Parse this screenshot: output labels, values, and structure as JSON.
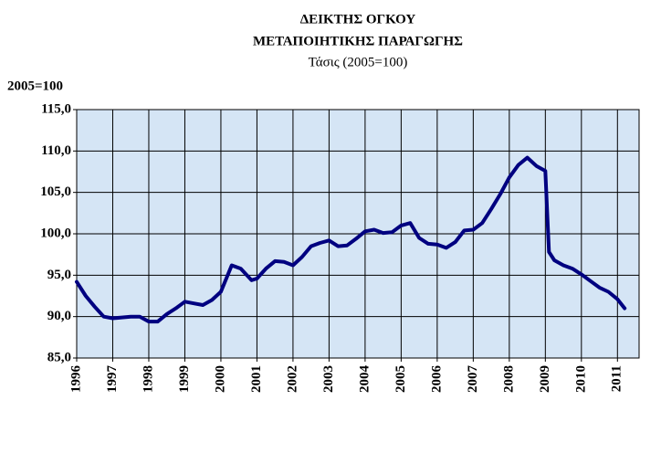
{
  "chart_data": {
    "type": "line",
    "title": [
      "ΔΕΙΚΤΗΣ ΟΓΚΟΥ",
      "ΜΕΤΑΠΟΙΗΤΙΚΗΣ ΠΑΡΑΓΩΓΗΣ"
    ],
    "subtitle": "Τάσις (2005=100)",
    "y_label": "2005=100",
    "series": [
      {
        "name": "Τάσις",
        "color": "#000080",
        "x": [
          1996.0,
          1996.25,
          1996.5,
          1996.75,
          1997.0,
          1997.25,
          1997.5,
          1997.75,
          1998.0,
          1998.25,
          1998.5,
          1998.75,
          1999.0,
          1999.25,
          1999.5,
          1999.75,
          2000.0,
          2000.3,
          2000.55,
          2000.85,
          2001.0,
          2001.25,
          2001.5,
          2001.75,
          2002.0,
          2002.25,
          2002.5,
          2002.75,
          2003.0,
          2003.25,
          2003.5,
          2003.75,
          2004.0,
          2004.25,
          2004.5,
          2004.75,
          2005.0,
          2005.25,
          2005.5,
          2005.75,
          2006.0,
          2006.25,
          2006.5,
          2006.75,
          2007.0,
          2007.25,
          2007.5,
          2007.75,
          2008.0,
          2008.25,
          2008.5,
          2008.75,
          2009.0,
          2009.1,
          2009.25,
          2009.5,
          2009.75,
          2010.0,
          2010.25,
          2010.5,
          2010.75,
          2011.0,
          2011.2
        ],
        "values": [
          94.2,
          92.5,
          91.2,
          90.0,
          89.8,
          89.9,
          90.0,
          90.0,
          89.4,
          89.4,
          90.3,
          91.0,
          91.8,
          91.6,
          91.4,
          92.0,
          93.0,
          96.2,
          95.8,
          94.4,
          94.6,
          95.8,
          96.7,
          96.6,
          96.2,
          97.2,
          98.5,
          98.9,
          99.2,
          98.5,
          98.6,
          99.4,
          100.3,
          100.5,
          100.1,
          100.2,
          101.0,
          101.3,
          99.5,
          98.8,
          98.7,
          98.3,
          99.0,
          100.4,
          100.5,
          101.3,
          103.0,
          104.8,
          106.8,
          108.3,
          109.2,
          108.2,
          107.6,
          97.8,
          96.8,
          96.2,
          95.8,
          95.1,
          94.3,
          93.5,
          93.0,
          92.1,
          91.0
        ]
      }
    ],
    "xlim": [
      1996,
      2011.6
    ],
    "xticks": [
      1996,
      1997,
      1998,
      1999,
      2000,
      2001,
      2002,
      2003,
      2004,
      2005,
      2006,
      2007,
      2008,
      2009,
      2010,
      2011
    ],
    "ylim": [
      85,
      115
    ],
    "yticks": [
      {
        "value": 85,
        "label": "85,0"
      },
      {
        "value": 90,
        "label": "90,0"
      },
      {
        "value": 95,
        "label": "95,0"
      },
      {
        "value": 100,
        "label": "100,0"
      },
      {
        "value": 105,
        "label": "105,0"
      },
      {
        "value": 110,
        "label": "110,0"
      },
      {
        "value": 115,
        "label": "115,0"
      }
    ],
    "grid": true
  }
}
